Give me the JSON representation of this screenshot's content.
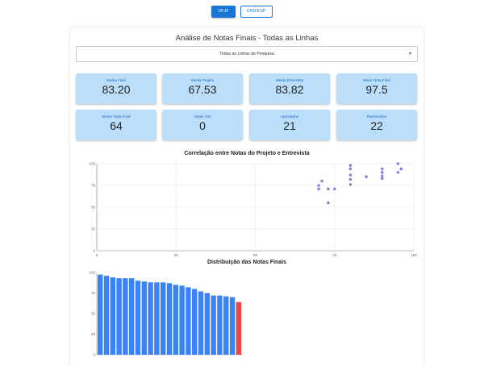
{
  "top_buttons": [
    {
      "label": "UFJF",
      "active": true
    },
    {
      "label": "UNIFESP",
      "active": false
    }
  ],
  "page_title": "Análise de Notas Finais - Todas as Linhas",
  "line_select": {
    "value": "Todas as Linhas de Pesquisa"
  },
  "stats": [
    {
      "label": "Media Final",
      "value": "83.20"
    },
    {
      "label": "Media Projeto",
      "value": "67.53"
    },
    {
      "label": "Media Entrevista",
      "value": "83.82"
    },
    {
      "label": "Maior Nota Final",
      "value": "97.5"
    },
    {
      "label": "Menor Nota Final",
      "value": "64"
    },
    {
      "label": "Notas 100",
      "value": "0"
    },
    {
      "label": "Aprovados",
      "value": "21"
    },
    {
      "label": "Reprovados",
      "value": "22"
    }
  ],
  "colors": {
    "accent": "#1976d2",
    "card": "#bbdefb",
    "scatter": "#8884d8",
    "bar": "#3b82f6",
    "bar_fail": "#ef4444"
  },
  "chart_data": [
    {
      "type": "scatter",
      "title": "Correlação entre Notas do Projeto e Entrevista",
      "xlabel": "",
      "ylabel": "",
      "xlim": [
        0,
        100
      ],
      "ylim": [
        0,
        100
      ],
      "xticks": [
        "0",
        "25",
        "50",
        "75",
        "100"
      ],
      "yticks": [
        "0",
        "25",
        "50",
        "75",
        "100"
      ],
      "grid": true,
      "points": [
        [
          70,
          75
        ],
        [
          70,
          71
        ],
        [
          71,
          80
        ],
        [
          73,
          71
        ],
        [
          73,
          55
        ],
        [
          75,
          71
        ],
        [
          80,
          98
        ],
        [
          80,
          94
        ],
        [
          80,
          87
        ],
        [
          80,
          82
        ],
        [
          80,
          76
        ],
        [
          85,
          85
        ],
        [
          90,
          94
        ],
        [
          90,
          90
        ],
        [
          90,
          86
        ],
        [
          90,
          83
        ],
        [
          95,
          100
        ],
        [
          95,
          90
        ],
        [
          96,
          94
        ]
      ]
    },
    {
      "type": "bar",
      "title": "Distribuição das Notas Finais",
      "xlabel": "",
      "ylabel": "",
      "ylim": [
        0,
        100
      ],
      "yticks": [
        "0",
        "25",
        "50",
        "75",
        "100"
      ],
      "values": [
        97.5,
        96,
        94,
        93,
        93,
        93,
        90,
        89,
        88,
        88,
        88,
        87,
        85,
        84,
        82,
        80,
        77,
        75,
        72,
        72,
        71,
        70,
        64
      ],
      "failed_index": 22
    }
  ]
}
